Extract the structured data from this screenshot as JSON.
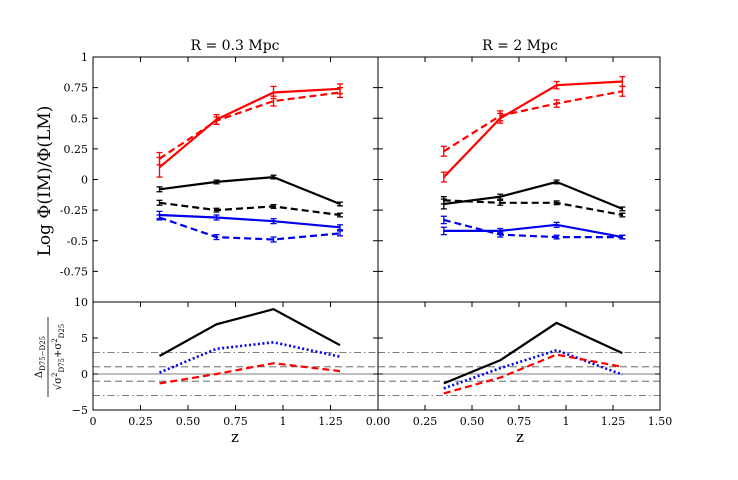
{
  "chart_data": {
    "type": "line",
    "panel_titles": [
      "R = 0.3 Mpc",
      "R = 2 Mpc"
    ],
    "xlabel": "z",
    "ylabel_top": "Log Φ(IM)/Φ(LM)",
    "ylabel_bottom": "Δ_{D75−D25} / √(σ²_{D75}+σ²_{D25})",
    "ylabel_bottom_num": "Δ",
    "ylabel_bottom_num_sub": "D75−D25",
    "ylabel_bottom_sqrt": "√",
    "ylabel_bottom_den": "σ",
    "ylabel_bottom_den_sup": "2",
    "ylabel_bottom_den_sub": "D75",
    "ylabel_bottom_plus": "+",
    "ylabel_bottom_den2": "σ",
    "ylabel_bottom_den2_sup": "2",
    "ylabel_bottom_den2_sub": "D25",
    "xlim": [
      0,
      1.5
    ],
    "ylim_top": [
      -1,
      1
    ],
    "ylim_bottom": [
      -5,
      10
    ],
    "x_ticks_left": [
      "0",
      "0.25",
      "0.50",
      "0.75",
      "1",
      "1.25"
    ],
    "x_ticks_right": [
      "0.00",
      "0.25",
      "0.50",
      "0.75",
      "1",
      "1.25",
      "1.50"
    ],
    "y_ticks_top": [
      "1",
      "0.75",
      "0.5",
      "0.25",
      "0",
      "-0.25",
      "-0.5",
      "-0.75"
    ],
    "y_ticks_bottom": [
      "10",
      "5",
      "0",
      "−5"
    ],
    "reference_lines_bottom": [
      {
        "y": 0,
        "style": "solid"
      },
      {
        "y": 1,
        "style": "dashed"
      },
      {
        "y": -1,
        "style": "dashed"
      },
      {
        "y": 3,
        "style": "dashdot"
      },
      {
        "y": -3,
        "style": "dashdot"
      }
    ],
    "panels": [
      {
        "name": "R = 0.3 Mpc",
        "x": [
          0.35,
          0.65,
          0.95,
          1.3
        ],
        "top_series": [
          {
            "name": "red-solid",
            "color": "#ff0000",
            "style": "solid",
            "values": [
              0.1,
              0.49,
              0.71,
              0.74
            ],
            "errors": [
              0.08,
              0.04,
              0.05,
              0.04
            ]
          },
          {
            "name": "red-dashed",
            "color": "#ff0000",
            "style": "dashed",
            "values": [
              0.17,
              0.48,
              0.64,
              0.71
            ],
            "errors": [
              0.05,
              0.03,
              0.04,
              0.04
            ]
          },
          {
            "name": "black-solid",
            "color": "#000000",
            "style": "solid",
            "values": [
              -0.08,
              -0.02,
              0.02,
              -0.2
            ],
            "errors": [
              0.02,
              0.015,
              0.015,
              0.015
            ]
          },
          {
            "name": "black-dashed",
            "color": "#000000",
            "style": "dashed",
            "values": [
              -0.19,
              -0.25,
              -0.22,
              -0.29
            ],
            "errors": [
              0.02,
              0.015,
              0.015,
              0.015
            ]
          },
          {
            "name": "blue-solid",
            "color": "#0000ee",
            "style": "solid",
            "values": [
              -0.29,
              -0.31,
              -0.34,
              -0.39
            ],
            "errors": [
              0.03,
              0.02,
              0.02,
              0.02
            ]
          },
          {
            "name": "blue-dashed",
            "color": "#0000ee",
            "style": "dashed",
            "values": [
              -0.31,
              -0.47,
              -0.49,
              -0.44
            ],
            "errors": [
              0.02,
              0.02,
              0.02,
              0.02
            ]
          }
        ],
        "bottom_series": [
          {
            "name": "black",
            "color": "#000000",
            "style": "solid",
            "values": [
              2.5,
              6.9,
              9.0,
              4.0
            ]
          },
          {
            "name": "blue",
            "color": "#0000ee",
            "style": "dotted",
            "values": [
              0.2,
              3.5,
              4.4,
              2.4
            ]
          },
          {
            "name": "red",
            "color": "#ff0000",
            "style": "dashed",
            "values": [
              -1.3,
              0.0,
              1.5,
              0.4
            ]
          }
        ]
      },
      {
        "name": "R = 2 Mpc",
        "x": [
          0.35,
          0.65,
          0.95,
          1.3
        ],
        "top_series": [
          {
            "name": "red-solid",
            "color": "#ff0000",
            "style": "solid",
            "values": [
              0.02,
              0.5,
              0.77,
              0.8
            ],
            "errors": [
              0.04,
              0.04,
              0.03,
              0.04
            ]
          },
          {
            "name": "red-dashed",
            "color": "#ff0000",
            "style": "dashed",
            "values": [
              0.23,
              0.52,
              0.62,
              0.72
            ],
            "errors": [
              0.04,
              0.04,
              0.03,
              0.04
            ]
          },
          {
            "name": "black-solid",
            "color": "#000000",
            "style": "solid",
            "values": [
              -0.2,
              -0.14,
              -0.02,
              -0.24
            ],
            "errors": [
              0.04,
              0.02,
              0.015,
              0.015
            ]
          },
          {
            "name": "black-dashed",
            "color": "#000000",
            "style": "dashed",
            "values": [
              -0.17,
              -0.19,
              -0.19,
              -0.29
            ],
            "errors": [
              0.03,
              0.02,
              0.015,
              0.015
            ]
          },
          {
            "name": "blue-solid",
            "color": "#0000ee",
            "style": "solid",
            "values": [
              -0.42,
              -0.42,
              -0.37,
              -0.47
            ],
            "errors": [
              0.03,
              0.02,
              0.02,
              0.015
            ]
          },
          {
            "name": "blue-dashed",
            "color": "#0000ee",
            "style": "dashed",
            "values": [
              -0.33,
              -0.45,
              -0.47,
              -0.47
            ],
            "errors": [
              0.03,
              0.02,
              0.015,
              0.015
            ]
          }
        ],
        "bottom_series": [
          {
            "name": "black",
            "color": "#000000",
            "style": "solid",
            "values": [
              -1.3,
              1.9,
              7.1,
              2.9
            ]
          },
          {
            "name": "blue",
            "color": "#0000ee",
            "style": "dotted",
            "values": [
              -2.0,
              0.8,
              3.3,
              -0.1
            ]
          },
          {
            "name": "red",
            "color": "#ff0000",
            "style": "dashed",
            "values": [
              -2.7,
              -0.5,
              2.7,
              1.0
            ]
          }
        ]
      }
    ]
  }
}
